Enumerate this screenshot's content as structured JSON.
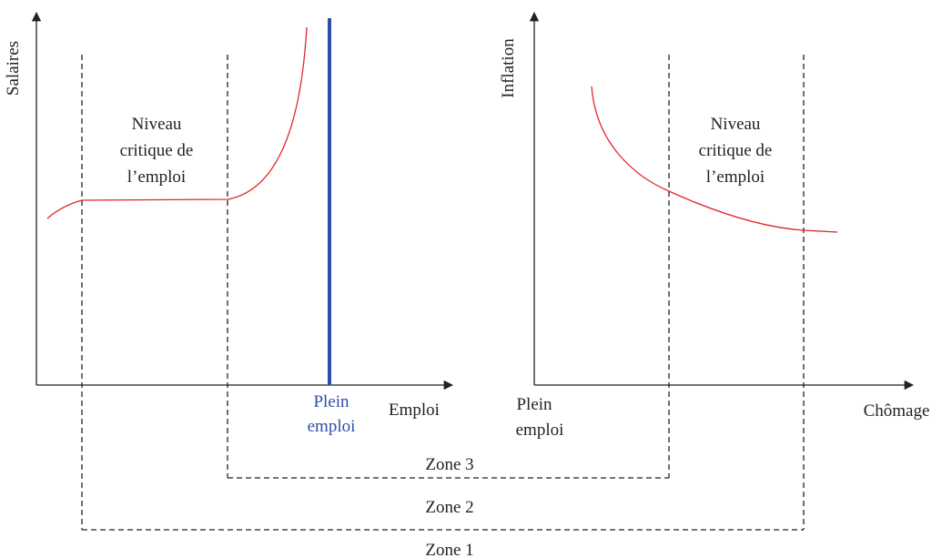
{
  "left_panel": {
    "y_axis_label": "Salaires",
    "x_axis_label": "Emploi",
    "region_label": [
      "Niveau",
      "critique de",
      "l’emploi"
    ],
    "marker_label": [
      "Plein",
      "emploi"
    ]
  },
  "right_panel": {
    "y_axis_label": "Inflation",
    "x_axis_label": "Chômage",
    "region_label": [
      "Niveau",
      "critique de",
      "l’emploi"
    ],
    "origin_label": [
      "Plein",
      "emploi"
    ]
  },
  "zones": [
    "Zone 3",
    "Zone 2",
    "Zone 1"
  ]
}
